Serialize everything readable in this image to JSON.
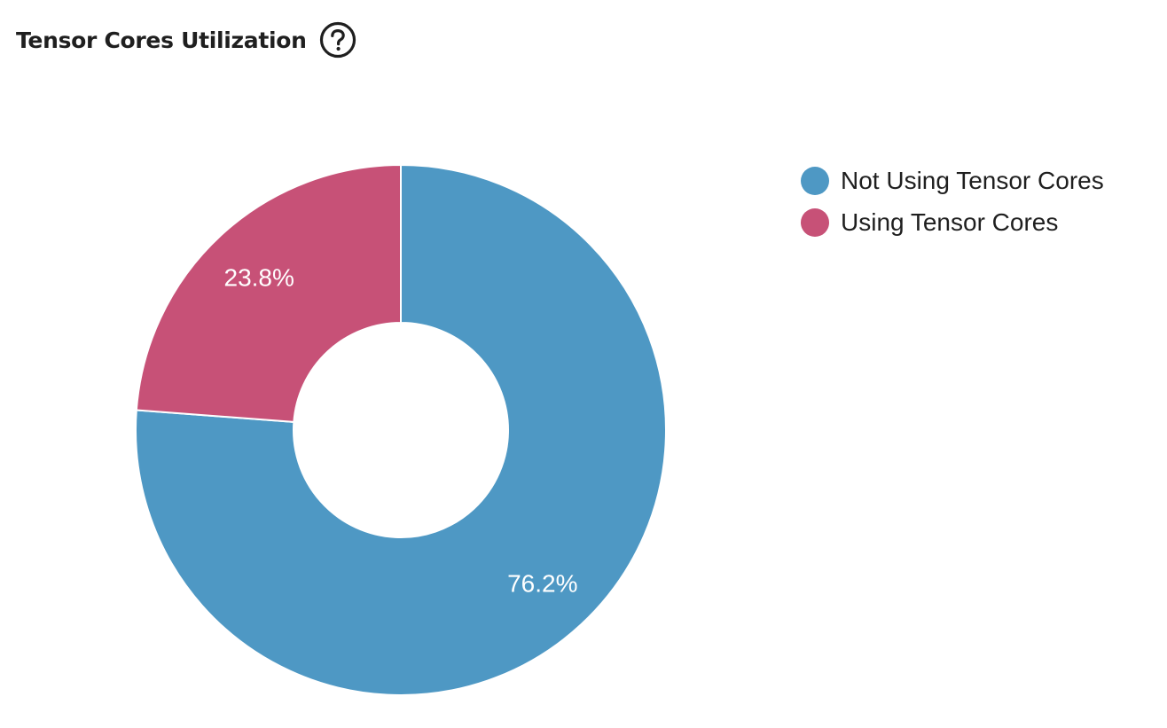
{
  "header": {
    "title": "Tensor Cores Utilization",
    "help_icon": "question-circle-icon"
  },
  "chart_data": {
    "type": "pie",
    "donut": true,
    "title": "Tensor Cores Utilization",
    "legend_position": "right",
    "slices": [
      {
        "name": "Not Using Tensor Cores",
        "value": 76.2,
        "label": "76.2%",
        "color": "#4e98c4"
      },
      {
        "name": "Using Tensor Cores",
        "value": 23.8,
        "label": "23.8%",
        "color": "#c75177"
      }
    ]
  }
}
